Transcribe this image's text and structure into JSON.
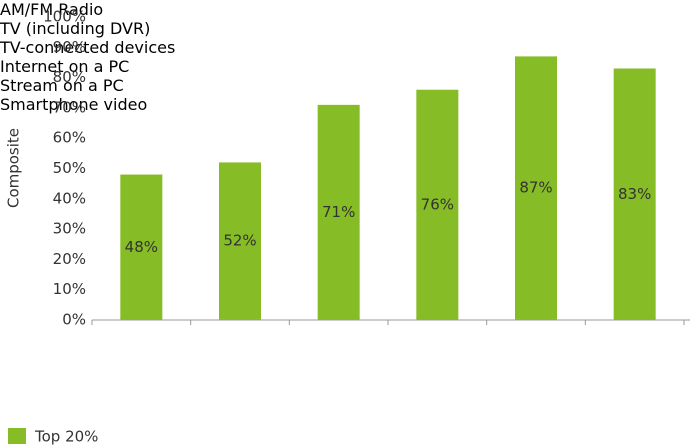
{
  "chart_data": {
    "type": "bar",
    "y_label": "Composite",
    "categories": [
      "AM/FM\nRadio",
      "TV\n(including\nDVR)",
      "TV-connected\ndevices",
      "Internet\non a PC",
      "Stream\non a PC",
      "Smartphone\nvideo"
    ],
    "series": [
      {
        "name": "Top 20%",
        "color": "#86bc25",
        "values": [
          48,
          52,
          71,
          76,
          87,
          83
        ],
        "value_labels": [
          "48%",
          "52%",
          "71%",
          "76%",
          "87%",
          "83%"
        ]
      }
    ],
    "ylim": [
      0,
      100
    ],
    "yticks": [
      {
        "value": 0,
        "label": "0%"
      },
      {
        "value": 10,
        "label": "10%"
      },
      {
        "value": 20,
        "label": "20%"
      },
      {
        "value": 30,
        "label": "30%"
      },
      {
        "value": 40,
        "label": "40%"
      },
      {
        "value": 50,
        "label": "50%"
      },
      {
        "value": 60,
        "label": "60%"
      },
      {
        "value": 70,
        "label": "70%"
      },
      {
        "value": 80,
        "label": "80%"
      },
      {
        "value": 90,
        "label": "90%"
      },
      {
        "value": 100,
        "label": "100%"
      }
    ],
    "grid": false,
    "legend": "bottom-left"
  }
}
